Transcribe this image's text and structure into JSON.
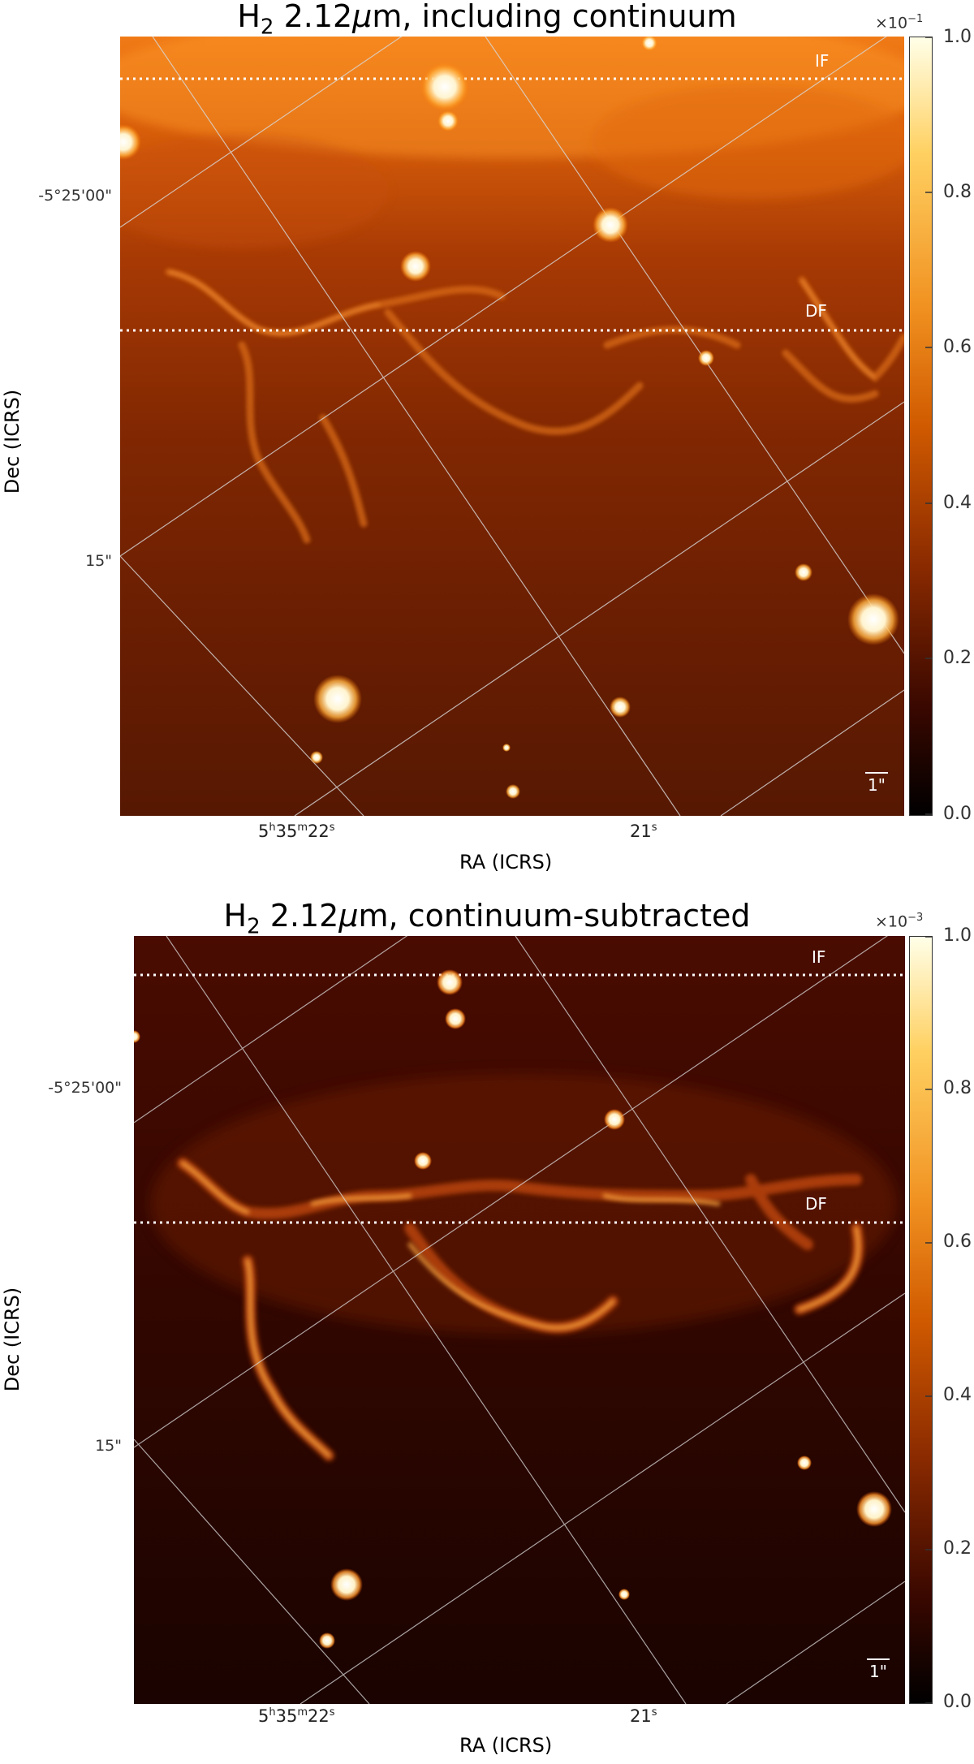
{
  "panels": [
    {
      "title_prefix": "H",
      "title_sub": "2",
      "title_wave": "2.12",
      "title_mu": "μ",
      "title_unit": "m",
      "title_suffix": ", including continuum",
      "ylabel": "Dec (ICRS)",
      "xlabel": "RA (ICRS)",
      "ytick_1": "-5°25'00\"",
      "ytick_2": "15\"",
      "xtick_1_main": "5",
      "xtick_1_h": "h",
      "xtick_1_mid": "35",
      "xtick_1_m": "m",
      "xtick_1_end": "22",
      "xtick_1_s": "s",
      "xtick_2_main": "21",
      "xtick_2_s": "s",
      "cbar_exponent_base": "×10",
      "cbar_exponent_power": "−1",
      "cbar_ticks": [
        "1.0",
        "0.8",
        "0.6",
        "0.4",
        "0.2",
        "0.0"
      ],
      "front_IF": "IF",
      "front_DF": "DF",
      "scalebar": "1\"",
      "colors": {
        "background": "#7a2a04",
        "bright": "#ff9a30",
        "star": "#fffbe8"
      }
    },
    {
      "title_prefix": "H",
      "title_sub": "2",
      "title_wave": "2.12",
      "title_mu": "μ",
      "title_unit": "m",
      "title_suffix": ", continuum-subtracted",
      "ylabel": "Dec (ICRS)",
      "xlabel": "RA (ICRS)",
      "ytick_1": "-5°25'00\"",
      "ytick_2": "15\"",
      "xtick_1_main": "5",
      "xtick_1_h": "h",
      "xtick_1_mid": "35",
      "xtick_1_m": "m",
      "xtick_1_end": "22",
      "xtick_1_s": "s",
      "xtick_2_main": "21",
      "xtick_2_s": "s",
      "cbar_exponent_base": "×10",
      "cbar_exponent_power": "−3",
      "cbar_ticks": [
        "1.0",
        "0.8",
        "0.6",
        "0.4",
        "0.2",
        "0.0"
      ],
      "front_IF": "IF",
      "front_DF": "DF",
      "scalebar": "1\"",
      "colors": {
        "background": "#2a0500",
        "bright": "#ffae40",
        "star": "#fffbe8"
      }
    }
  ],
  "colormap": [
    "#000000",
    "#3a0800",
    "#8a2a00",
    "#d05a00",
    "#f09020",
    "#ffd060",
    "#ffffe8"
  ]
}
